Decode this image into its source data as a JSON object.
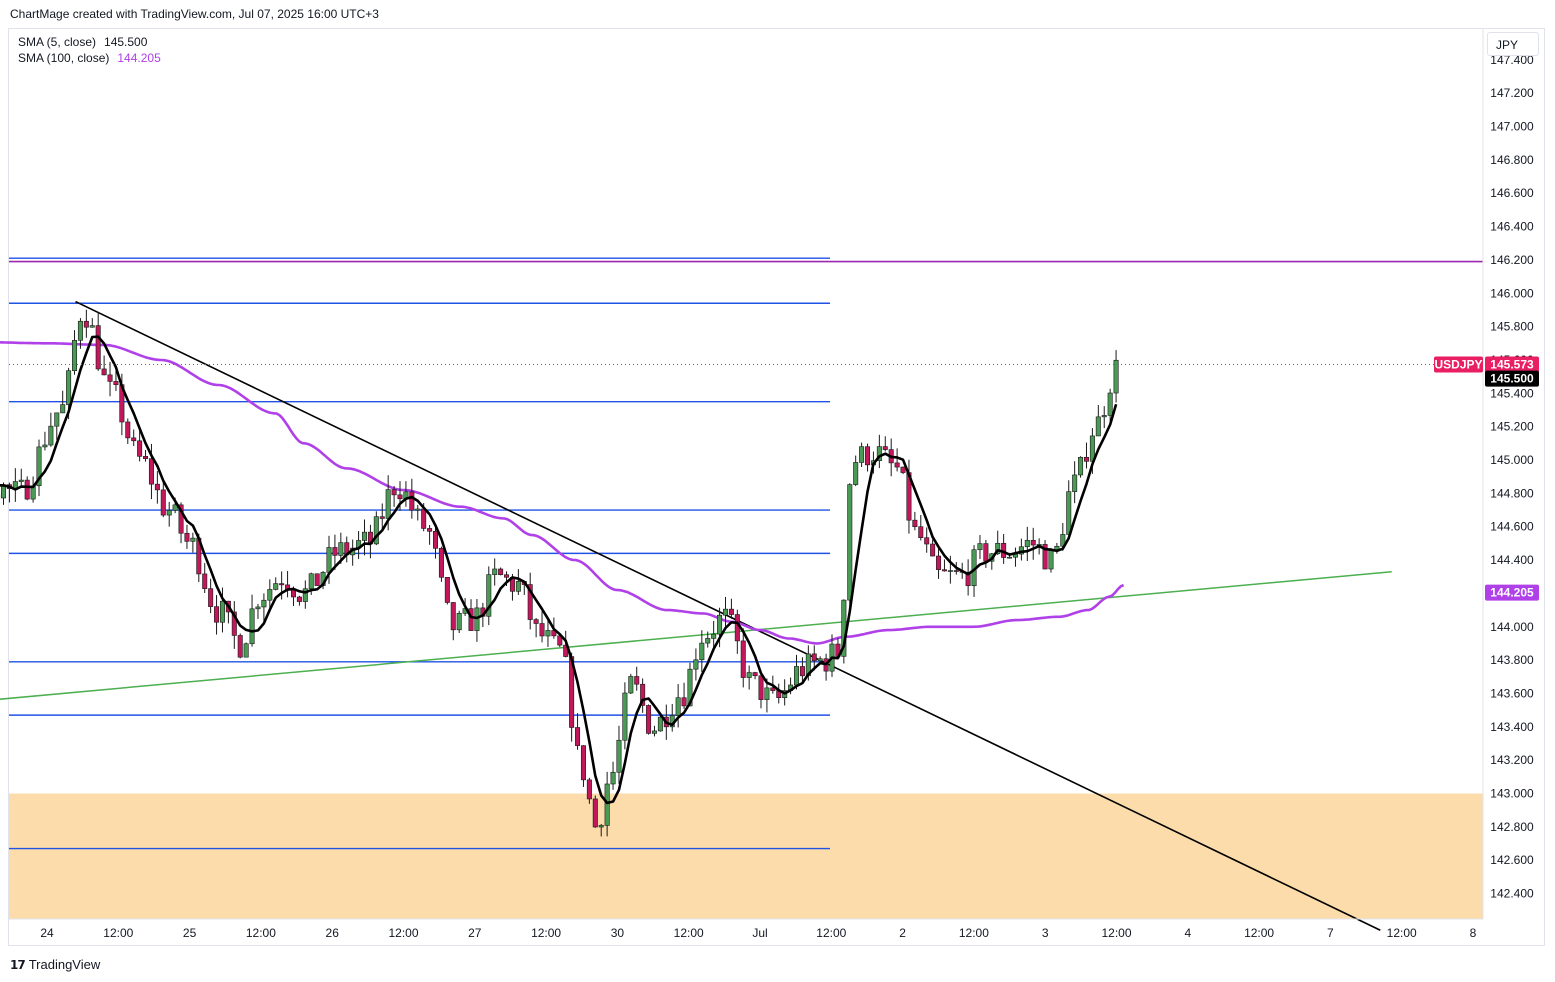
{
  "header": {
    "credit": "ChartMage created with TradingView.com, Jul 07, 2025 16:00 UTC+3"
  },
  "legend": {
    "sma5_label": "SMA (5, close)",
    "sma5_value": "145.500",
    "sma100_label": "SMA (100, close)",
    "sma100_value": "144.205"
  },
  "currency_button": "JPY",
  "footer": {
    "brand": "TradingView"
  },
  "colors": {
    "candle_up": "#4a9a55",
    "candle_down": "#c2185b",
    "sma5": "#000000",
    "sma100": "#b040e8",
    "level_lines": "#1e53e5",
    "resistance_line": "#9c27b0",
    "trend_support": "#4caf50",
    "trend_resistance": "#000000",
    "demand_zone": "#fcdcab",
    "last_price_badge": "#e91e63",
    "sma5_badge": "#000000",
    "sma100_badge": "#b040e8"
  },
  "chart_data": {
    "type": "candlestick",
    "symbol": "USDJPY",
    "ylim": [
      142.1,
      147.5
    ],
    "y_ticks": [
      "142.400",
      "142.600",
      "142.800",
      "143.000",
      "143.200",
      "143.400",
      "143.600",
      "143.800",
      "144.000",
      "144.200",
      "144.400",
      "144.600",
      "144.800",
      "145.000",
      "145.200",
      "145.400",
      "145.600",
      "145.800",
      "146.000",
      "146.200",
      "146.400",
      "146.600",
      "146.800",
      "147.000",
      "147.200",
      "147.400"
    ],
    "x_ticks": [
      "24",
      "12:00",
      "25",
      "12:00",
      "26",
      "12:00",
      "27",
      "12:00",
      "30",
      "12:00",
      "Jul",
      "12:00",
      "2",
      "12:00",
      "3",
      "12:00",
      "4",
      "12:00",
      "7",
      "12:00",
      "8"
    ],
    "last_price": {
      "label": "USDJPY",
      "value": 145.573
    },
    "sma5_last": 145.5,
    "sma100_last": 144.205,
    "horizontal_levels": [
      146.21,
      145.94,
      145.35,
      144.7,
      144.44,
      143.79,
      143.47,
      142.67
    ],
    "resistance_level": 146.19,
    "demand_zone": [
      142.13,
      143.0
    ],
    "trendlines": [
      {
        "name": "descending",
        "from": [
          0.2,
          145.95
        ],
        "to": [
          9.35,
          142.18
        ]
      },
      {
        "name": "ascending",
        "from": [
          -1.55,
          143.47
        ],
        "to": [
          9.43,
          144.33
        ]
      }
    ],
    "anchors_close": [
      [
        -1.55,
        146.8
      ],
      [
        -1.35,
        146.2
      ],
      [
        -1.1,
        145.45
      ],
      [
        -0.8,
        145.0
      ],
      [
        -0.5,
        144.9
      ],
      [
        -0.2,
        144.8
      ],
      [
        0.1,
        145.3
      ],
      [
        0.25,
        145.9
      ],
      [
        0.45,
        145.4
      ],
      [
        0.65,
        145.0
      ],
      [
        0.85,
        144.7
      ],
      [
        1.0,
        144.5
      ],
      [
        1.2,
        144.1
      ],
      [
        1.35,
        143.9
      ],
      [
        1.5,
        144.2
      ],
      [
        1.65,
        144.3
      ],
      [
        1.8,
        144.2
      ],
      [
        2.05,
        144.45
      ],
      [
        2.25,
        144.5
      ],
      [
        2.45,
        144.85
      ],
      [
        2.65,
        144.6
      ],
      [
        2.85,
        144.0
      ],
      [
        3.0,
        144.05
      ],
      [
        3.15,
        144.3
      ],
      [
        3.3,
        144.25
      ],
      [
        3.45,
        143.95
      ],
      [
        3.6,
        143.85
      ],
      [
        3.75,
        143.15
      ],
      [
        3.85,
        142.8
      ],
      [
        3.95,
        143.1
      ],
      [
        4.1,
        143.65
      ],
      [
        4.25,
        143.4
      ],
      [
        4.45,
        143.6
      ],
      [
        4.6,
        143.95
      ],
      [
        4.75,
        144.05
      ],
      [
        4.95,
        143.65
      ],
      [
        5.1,
        143.55
      ],
      [
        5.3,
        143.75
      ],
      [
        5.45,
        143.8
      ],
      [
        5.55,
        143.85
      ],
      [
        5.65,
        145.0
      ],
      [
        5.8,
        145.05
      ],
      [
        5.95,
        144.95
      ],
      [
        6.1,
        144.55
      ],
      [
        6.25,
        144.3
      ],
      [
        6.4,
        144.3
      ],
      [
        6.6,
        144.45
      ],
      [
        6.75,
        144.45
      ],
      [
        6.9,
        144.5
      ],
      [
        7.05,
        144.4
      ],
      [
        7.2,
        144.85
      ],
      [
        7.35,
        145.2
      ],
      [
        7.5,
        145.55
      ]
    ],
    "sma100_path": [
      [
        -1.55,
        145.62
      ],
      [
        -1.2,
        145.7
      ],
      [
        -0.6,
        145.71
      ],
      [
        0.0,
        145.7
      ],
      [
        0.4,
        145.69
      ],
      [
        0.8,
        145.6
      ],
      [
        1.2,
        145.45
      ],
      [
        1.6,
        145.28
      ],
      [
        1.8,
        145.1
      ],
      [
        2.1,
        144.95
      ],
      [
        2.5,
        144.82
      ],
      [
        2.9,
        144.72
      ],
      [
        3.2,
        144.65
      ],
      [
        3.4,
        144.55
      ],
      [
        3.7,
        144.4
      ],
      [
        4.0,
        144.22
      ],
      [
        4.35,
        144.1
      ],
      [
        4.6,
        144.08
      ],
      [
        4.8,
        144.03
      ],
      [
        5.0,
        143.98
      ],
      [
        5.2,
        143.93
      ],
      [
        5.4,
        143.9
      ],
      [
        5.6,
        143.94
      ],
      [
        5.9,
        143.98
      ],
      [
        6.2,
        144.0
      ],
      [
        6.5,
        144.0
      ],
      [
        6.8,
        144.04
      ],
      [
        7.1,
        144.06
      ],
      [
        7.3,
        144.1
      ],
      [
        7.45,
        144.18
      ],
      [
        7.55,
        144.25
      ]
    ]
  }
}
